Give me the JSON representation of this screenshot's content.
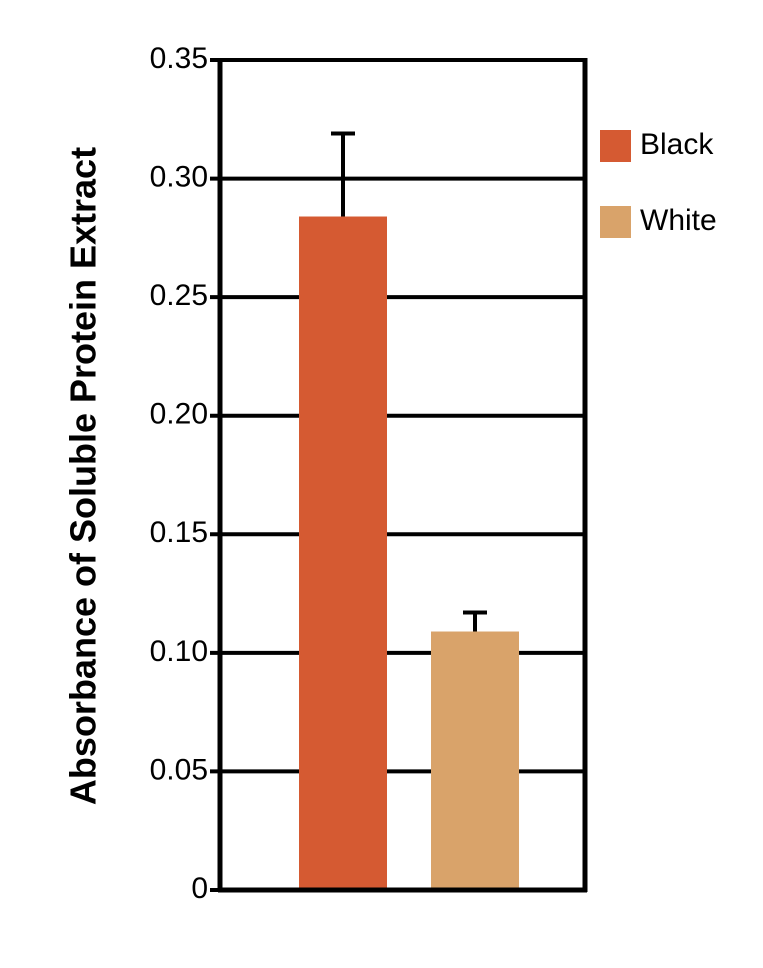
{
  "chart_data": {
    "type": "bar",
    "ylabel": "Absorbance of Soluble Protein Extract",
    "categories": [
      null
    ],
    "series": [
      {
        "name": "Black",
        "color": "#d55a32",
        "values": [
          0.284
        ],
        "errors": [
          0.035
        ]
      },
      {
        "name": "White",
        "color": "#d9a36a",
        "values": [
          0.109
        ],
        "errors": [
          0.008
        ]
      }
    ],
    "ylim": [
      0,
      0.35
    ],
    "yticks": [
      0,
      0.05,
      {
        "value": 0.1,
        "label": "0.10"
      },
      0.15,
      {
        "value": 0.2,
        "label": "0.20"
      },
      0.25,
      {
        "value": 0.3,
        "label": "0.30"
      },
      0.35
    ],
    "grid": true,
    "legend": "right"
  }
}
